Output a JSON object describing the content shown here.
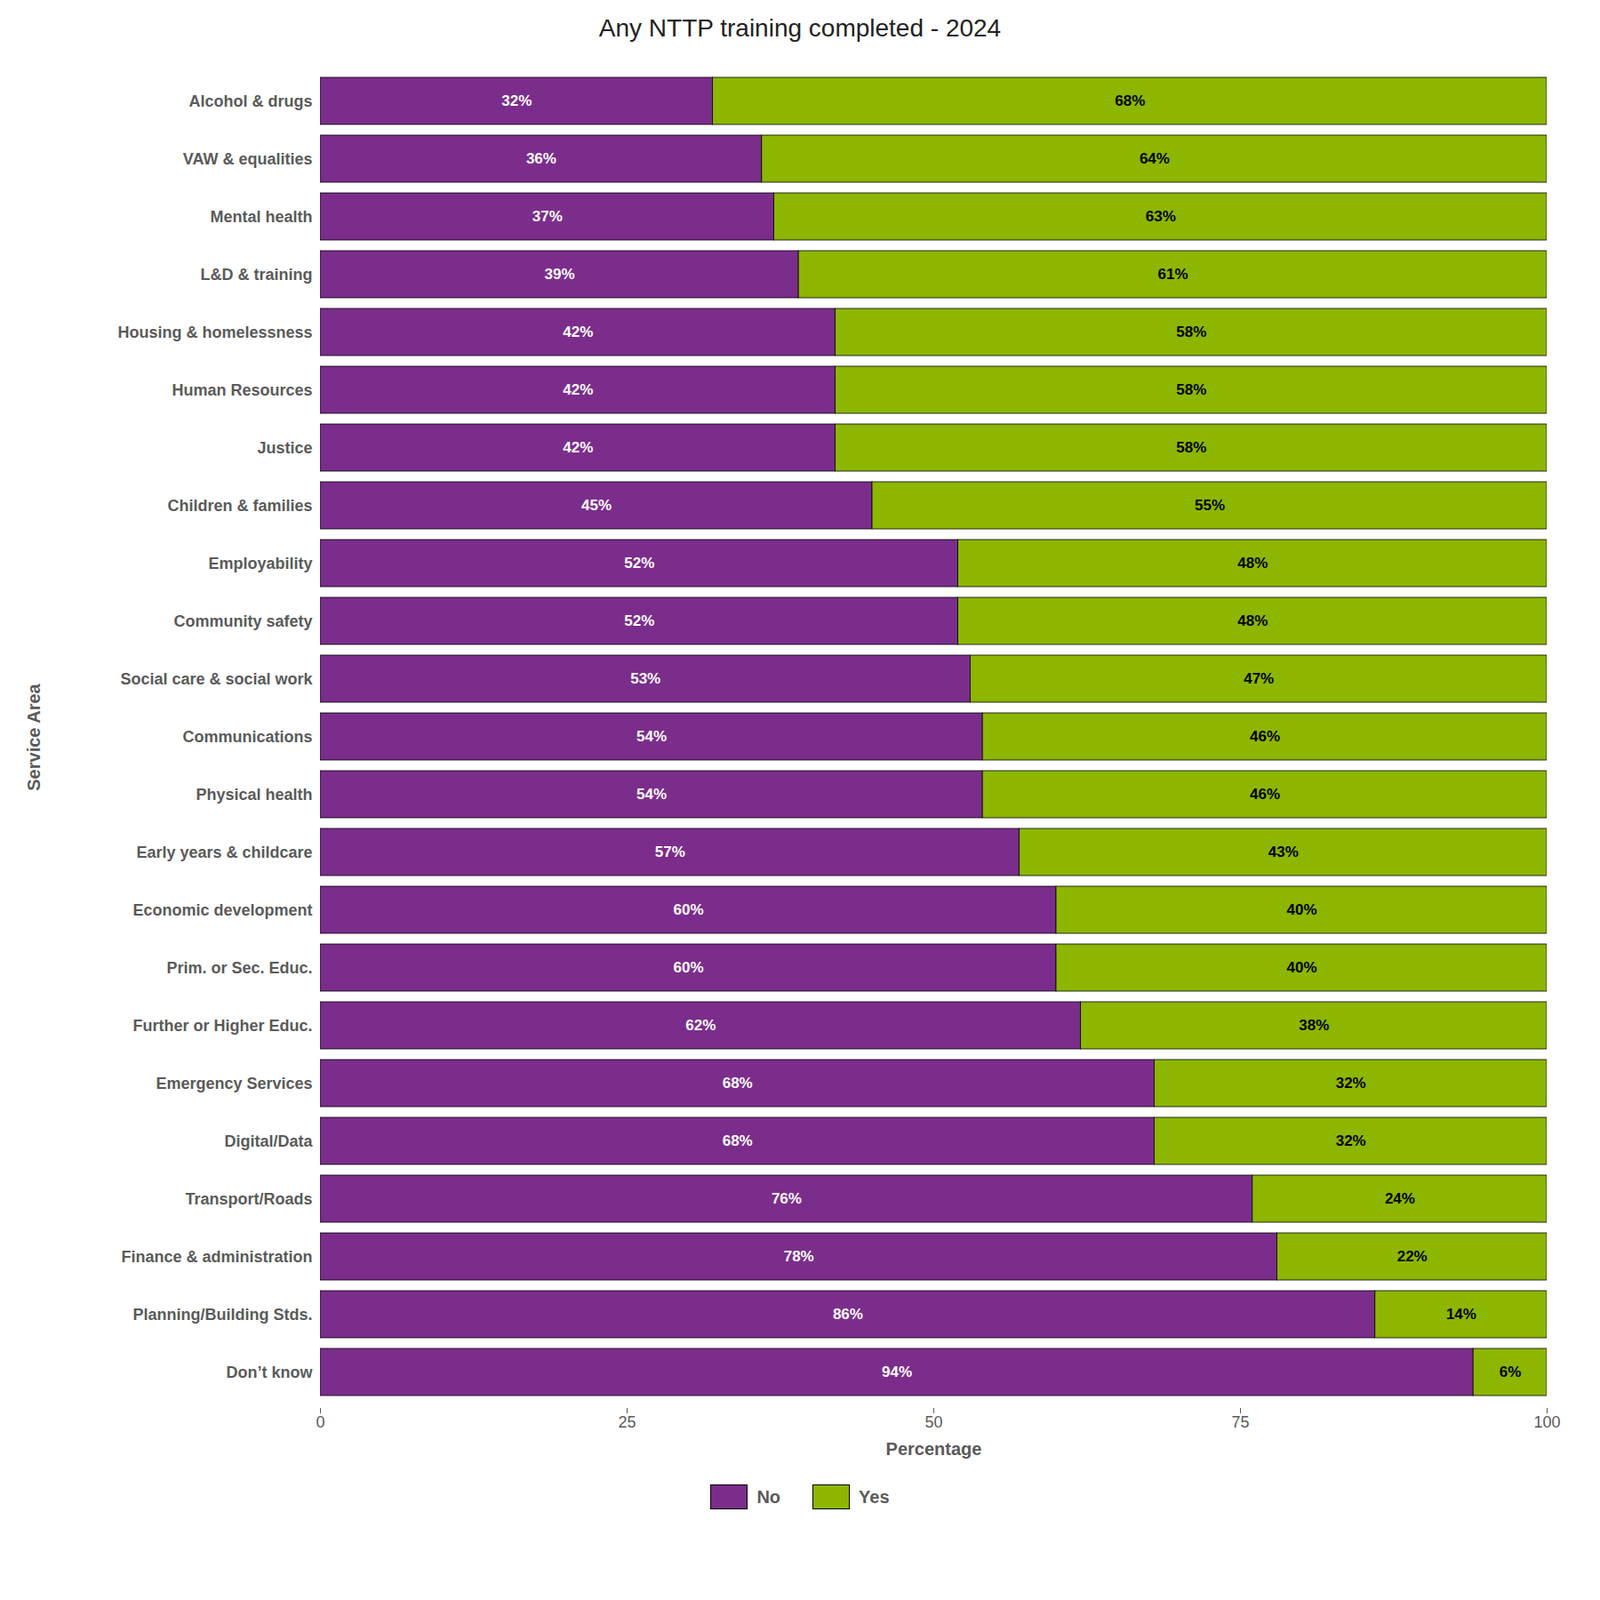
{
  "chart_data": {
    "type": "bar",
    "orientation": "horizontal",
    "stacked": true,
    "data_labels": true,
    "grid": false,
    "legend": "bottom",
    "title": "Any NTTP training completed - 2024",
    "xlabel": "Percentage",
    "ylabel": "Service Area",
    "categories": [
      "Don’t know",
      "Planning/Building Stds.",
      "Finance & administration",
      "Transport/Roads",
      "Digital/Data",
      "Emergency Services",
      "Further or Higher Educ.",
      "Prim. or Sec. Educ.",
      "Economic development",
      "Early years & childcare",
      "Physical health",
      "Communications",
      "Social care & social work",
      "Community safety",
      "Employability",
      "Children & families",
      "Justice",
      "Human Resources",
      "Housing & homelessness",
      "L&D & training",
      "Mental health",
      "VAW & equalities",
      "Alcohol & drugs"
    ],
    "series": [
      {
        "name": "No",
        "color": "#7B2D8B",
        "values": [
          94,
          86,
          78,
          76,
          68,
          68,
          62,
          60,
          60,
          57,
          54,
          54,
          53,
          52,
          52,
          45,
          42,
          42,
          42,
          39,
          37,
          36,
          32
        ],
        "value_labels": [
          "94%",
          "86%",
          "78%",
          "76%",
          "68%",
          "68%",
          "62%",
          "60%",
          "60%",
          "57%",
          "54%",
          "54%",
          "53%",
          "52%",
          "52%",
          "45%",
          "42%",
          "42%",
          "42%",
          "39%",
          "37%",
          "36%",
          "32%"
        ]
      },
      {
        "name": "Yes",
        "color": "#8DB600",
        "values": [
          6,
          14,
          22,
          24,
          32,
          32,
          38,
          40,
          40,
          43,
          46,
          46,
          47,
          48,
          48,
          55,
          58,
          58,
          58,
          61,
          63,
          64,
          68
        ],
        "value_labels": [
          "6%",
          "14%",
          "22%",
          "24%",
          "32%",
          "32%",
          "38%",
          "40%",
          "40%",
          "43%",
          "46%",
          "46%",
          "47%",
          "48%",
          "48%",
          "55%",
          "58%",
          "58%",
          "58%",
          "61%",
          "63%",
          "64%",
          "68%"
        ]
      }
    ],
    "xlim": [
      0,
      100
    ],
    "xticks": [
      0,
      25,
      50,
      75,
      100
    ]
  }
}
